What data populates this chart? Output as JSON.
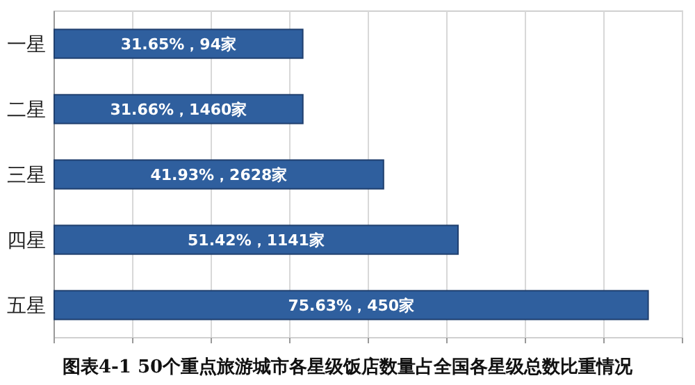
{
  "chart_data": {
    "type": "bar",
    "orientation": "horizontal",
    "title": "图表4-1  50个重点旅游城市各星级饭店数量占全国各星级总数比重情况",
    "categories": [
      "一星",
      "二星",
      "三星",
      "四星",
      "五星"
    ],
    "values": [
      31.65,
      31.66,
      41.93,
      51.42,
      75.63
    ],
    "value_labels": [
      "31.65%，94家",
      "31.66%，1460家",
      "41.93%，2628家",
      "51.42%，1141家",
      "75.63%，450家"
    ],
    "color": "#2f5f9e",
    "xlim": [
      0,
      80
    ],
    "xticks": [
      {
        "value": 0,
        "label": null
      },
      {
        "value": 10,
        "label": null
      },
      {
        "value": 20,
        "label": null
      },
      {
        "value": 30,
        "label": null
      },
      {
        "value": 40,
        "label": null
      },
      {
        "value": 50,
        "label": null
      },
      {
        "value": 60,
        "label": null
      },
      {
        "value": 70,
        "label": null
      },
      {
        "value": 80,
        "label": null
      }
    ],
    "tick_labels": "y",
    "grid": "x"
  }
}
